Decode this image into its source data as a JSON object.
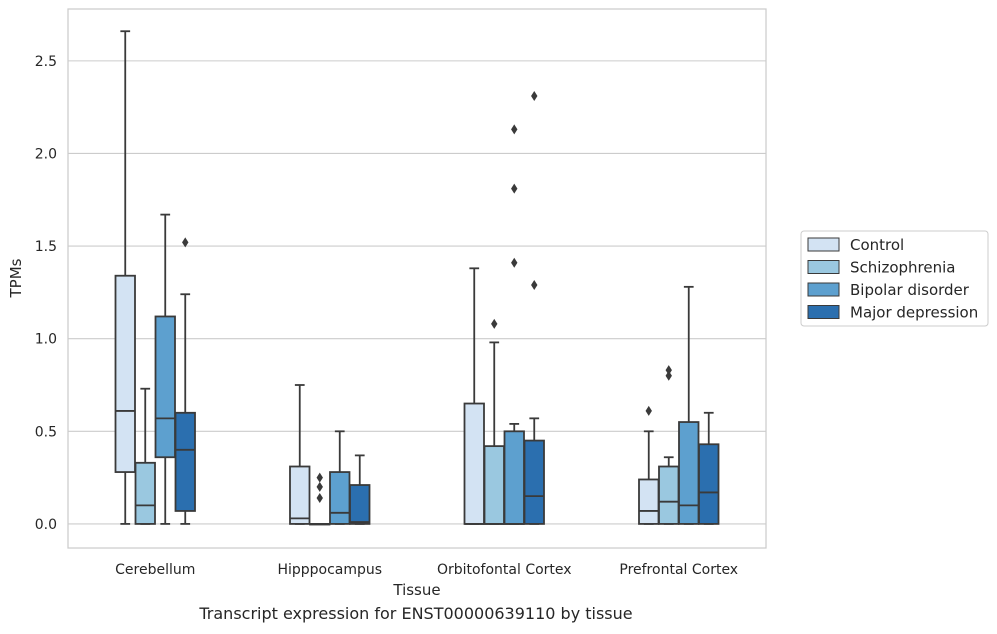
{
  "caption": "Transcript expression for ENST00000639110 by tissue",
  "chart_data": {
    "type": "box",
    "xlabel": "Tissue",
    "ylabel": "TPMs",
    "ylim": [
      -0.13,
      2.78
    ],
    "yticks": [
      0.0,
      0.5,
      1.0,
      1.5,
      2.0,
      2.5
    ],
    "ytick_labels": [
      "0.0",
      "0.5",
      "1.0",
      "1.5",
      "2.0",
      "2.5"
    ],
    "grid": "horizontal",
    "legend_position": "right-outside",
    "categories": [
      "Cerebellum",
      "Hipppocampus",
      "Orbitofontal Cortex",
      "Prefrontal Cortex"
    ],
    "series": [
      {
        "name": "Control",
        "color": "#d3e3f3",
        "boxes": [
          {
            "whislo": 0.0,
            "q1": 0.28,
            "med": 0.61,
            "q3": 1.34,
            "whishi": 2.66,
            "fliers": []
          },
          {
            "whislo": 0.0,
            "q1": 0.0,
            "med": 0.03,
            "q3": 0.31,
            "whishi": 0.75,
            "fliers": []
          },
          {
            "whislo": 0.0,
            "q1": 0.0,
            "med": 0.0,
            "q3": 0.65,
            "whishi": 1.38,
            "fliers": []
          },
          {
            "whislo": 0.0,
            "q1": 0.0,
            "med": 0.07,
            "q3": 0.24,
            "whishi": 0.5,
            "fliers": [
              0.61
            ]
          }
        ]
      },
      {
        "name": "Schizophrenia",
        "color": "#9ac8e0",
        "boxes": [
          {
            "whislo": 0.0,
            "q1": 0.0,
            "med": 0.1,
            "q3": 0.33,
            "whishi": 0.73,
            "fliers": []
          },
          {
            "whislo": 0.0,
            "q1": 0.0,
            "med": 0.0,
            "q3": 0.0,
            "whishi": 0.0,
            "fliers": [
              0.14,
              0.2,
              0.25
            ]
          },
          {
            "whislo": 0.0,
            "q1": 0.0,
            "med": 0.0,
            "q3": 0.42,
            "whishi": 0.98,
            "fliers": [
              1.08
            ]
          },
          {
            "whislo": 0.0,
            "q1": 0.0,
            "med": 0.12,
            "q3": 0.31,
            "whishi": 0.36,
            "fliers": [
              0.8,
              0.83
            ]
          }
        ]
      },
      {
        "name": "Bipolar disorder",
        "color": "#5da0cf",
        "boxes": [
          {
            "whislo": 0.0,
            "q1": 0.36,
            "med": 0.57,
            "q3": 1.12,
            "whishi": 1.67,
            "fliers": []
          },
          {
            "whislo": 0.0,
            "q1": 0.0,
            "med": 0.06,
            "q3": 0.28,
            "whishi": 0.5,
            "fliers": []
          },
          {
            "whislo": 0.0,
            "q1": 0.0,
            "med": 0.0,
            "q3": 0.5,
            "whishi": 0.54,
            "fliers": [
              1.41,
              1.81,
              2.13
            ]
          },
          {
            "whislo": 0.0,
            "q1": 0.0,
            "med": 0.1,
            "q3": 0.55,
            "whishi": 1.28,
            "fliers": []
          }
        ]
      },
      {
        "name": "Major depression",
        "color": "#2b6faf",
        "boxes": [
          {
            "whislo": 0.0,
            "q1": 0.07,
            "med": 0.4,
            "q3": 0.6,
            "whishi": 1.24,
            "fliers": [
              1.52
            ]
          },
          {
            "whislo": 0.0,
            "q1": 0.0,
            "med": 0.01,
            "q3": 0.21,
            "whishi": 0.37,
            "fliers": []
          },
          {
            "whislo": 0.0,
            "q1": 0.0,
            "med": 0.15,
            "q3": 0.45,
            "whishi": 0.57,
            "fliers": [
              1.29,
              2.31
            ]
          },
          {
            "whislo": 0.0,
            "q1": 0.0,
            "med": 0.17,
            "q3": 0.43,
            "whishi": 0.6,
            "fliers": []
          }
        ]
      }
    ]
  }
}
